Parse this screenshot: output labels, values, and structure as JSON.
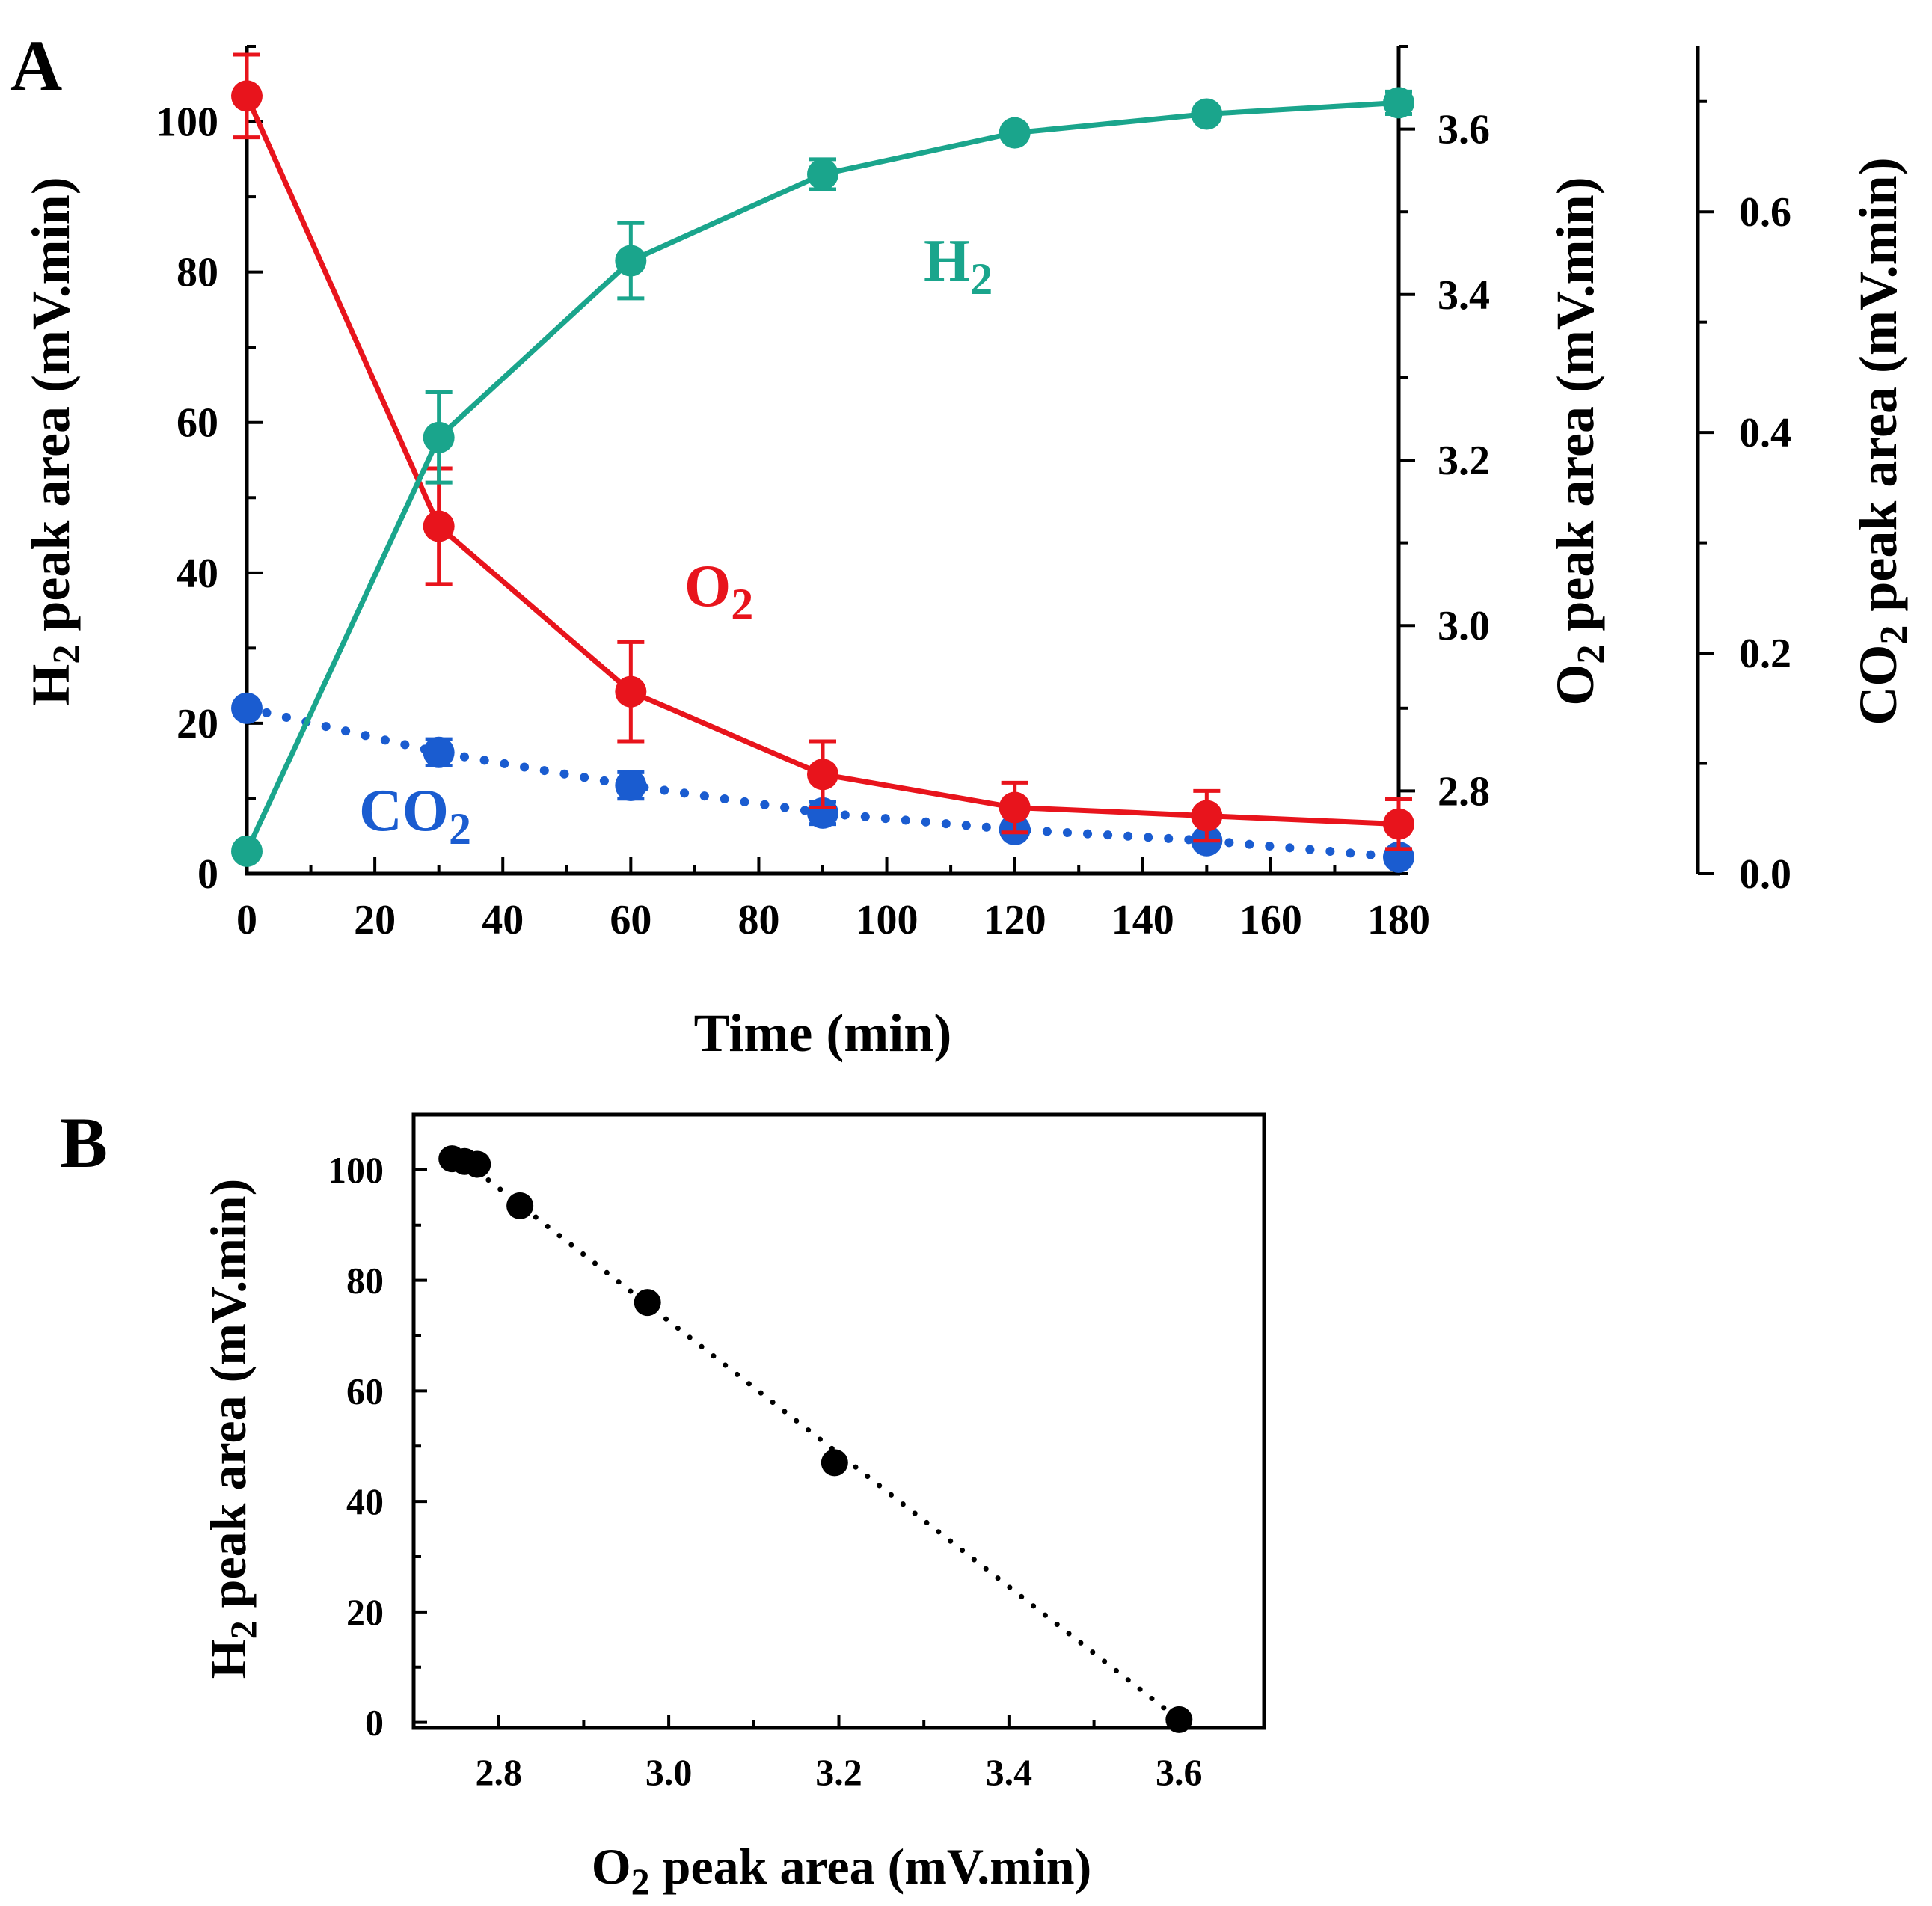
{
  "chart_data": [
    {
      "panel": "A",
      "type": "line",
      "xlabel": "Time (min)",
      "xlim": [
        0,
        180
      ],
      "xticks": [
        0,
        20,
        40,
        60,
        80,
        100,
        120,
        140,
        160,
        180
      ],
      "axes": {
        "left": {
          "label": "H2 peak area (mV.min)",
          "ylim": [
            0,
            110
          ],
          "ticks": [
            0,
            20,
            40,
            60,
            80,
            100
          ]
        },
        "right1": {
          "label": "O2 peak area (mV.min)",
          "ylim": [
            2.7,
            3.7
          ],
          "ticks": [
            "2.8",
            "3.0",
            "3.2",
            "3.4",
            "3.6"
          ]
        },
        "right2": {
          "label": "CO2 peak area (mV.min)",
          "ylim": [
            0,
            0.75
          ],
          "ticks": [
            "0.0",
            "0.2",
            "0.4",
            "0.6"
          ]
        }
      },
      "series": [
        {
          "name": "H2",
          "label": "H2",
          "axis": "left",
          "color": "#1aa58c",
          "style": "solid",
          "x": [
            0,
            30,
            60,
            90,
            120,
            150,
            180
          ],
          "y": [
            3,
            58,
            81.5,
            93,
            98.5,
            101,
            102.5
          ],
          "err": [
            0,
            6,
            5,
            2,
            0,
            0,
            1.5
          ]
        },
        {
          "name": "O2",
          "label": "O2",
          "axis": "right1",
          "color": "#e8141c",
          "style": "solid",
          "x": [
            0,
            30,
            60,
            90,
            120,
            150,
            180
          ],
          "y": [
            3.64,
            3.12,
            2.92,
            2.82,
            2.78,
            2.77,
            2.76
          ],
          "err": [
            0.05,
            0.07,
            0.06,
            0.04,
            0.03,
            0.03,
            0.03
          ]
        },
        {
          "name": "CO2",
          "label": "CO2",
          "axis": "right2",
          "color": "#1a5cd0",
          "style": "dotted",
          "x": [
            0,
            30,
            60,
            90,
            120,
            150,
            180
          ],
          "y": [
            0.15,
            0.11,
            0.08,
            0.055,
            0.04,
            0.03,
            0.015
          ],
          "err": [
            0,
            0.012,
            0.012,
            0.01,
            0,
            0,
            0
          ]
        }
      ]
    },
    {
      "panel": "B",
      "type": "scatter",
      "xlabel": "O2 peak area (mV.min)",
      "ylabel": "H2 peak area (mV.min)",
      "xlim": [
        2.7,
        3.7
      ],
      "ylim": [
        -1,
        110
      ],
      "xticks": [
        "2.8",
        "3.0",
        "3.2",
        "3.4",
        "3.6"
      ],
      "yticks": [
        0,
        20,
        40,
        60,
        80,
        100
      ],
      "color": "#000000",
      "x": [
        2.745,
        2.76,
        2.775,
        2.825,
        2.975,
        3.195,
        3.6
      ],
      "y": [
        102,
        101.5,
        101,
        93.5,
        76,
        47,
        0.5
      ],
      "fit": {
        "style": "dotted",
        "from": [
          2.76,
          101.5
        ],
        "to": [
          3.6,
          0.5
        ]
      }
    }
  ]
}
